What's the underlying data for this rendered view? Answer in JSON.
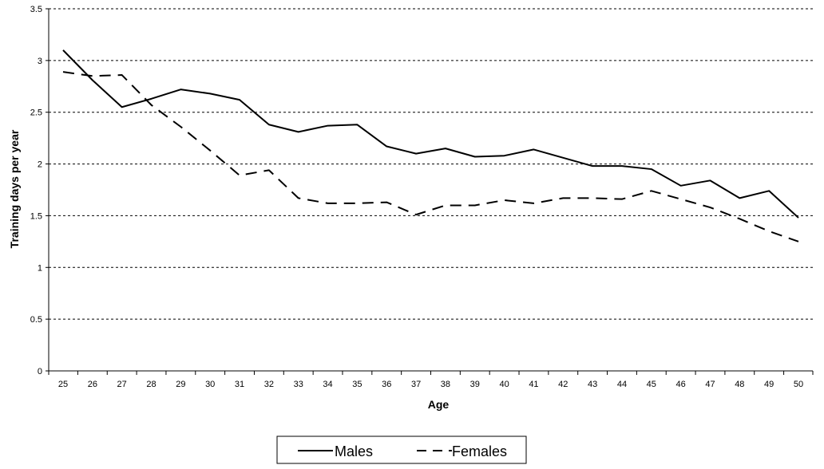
{
  "chart_data": {
    "type": "line",
    "title": "",
    "xlabel": "Age",
    "ylabel": "Training days per year",
    "x": [
      25,
      26,
      27,
      28,
      29,
      30,
      31,
      32,
      33,
      34,
      35,
      36,
      37,
      38,
      39,
      40,
      41,
      42,
      43,
      44,
      45,
      46,
      47,
      48,
      49,
      50
    ],
    "ylim": [
      0,
      3.5
    ],
    "yticks": [
      "0",
      "0.5",
      "1",
      "1.5",
      "2",
      "2.5",
      "3",
      "3.5"
    ],
    "grid": "horizontal dashed",
    "legend_position": "bottom",
    "series": [
      {
        "name": "Males",
        "style": "solid",
        "color": "#000000",
        "values": [
          3.1,
          2.81,
          2.55,
          2.63,
          2.72,
          2.68,
          2.62,
          2.38,
          2.31,
          2.37,
          2.38,
          2.17,
          2.1,
          2.15,
          2.07,
          2.08,
          2.14,
          2.06,
          1.98,
          1.98,
          1.95,
          1.79,
          1.84,
          1.67,
          1.74,
          1.48
        ]
      },
      {
        "name": "Females",
        "style": "dashed",
        "color": "#000000",
        "values": [
          2.89,
          2.85,
          2.86,
          2.57,
          2.36,
          2.13,
          1.89,
          1.94,
          1.67,
          1.62,
          1.62,
          1.63,
          1.51,
          1.6,
          1.6,
          1.65,
          1.62,
          1.67,
          1.67,
          1.66,
          1.74,
          1.66,
          1.58,
          1.47,
          1.35,
          1.25
        ]
      }
    ]
  }
}
